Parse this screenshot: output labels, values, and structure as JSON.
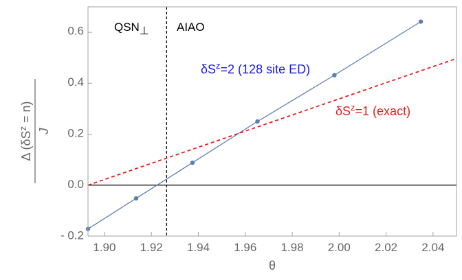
{
  "chart_data": {
    "type": "line",
    "xlabel": "θ",
    "ylabel": "Δ (δS^z = n) / J",
    "xlim": [
      1.893,
      2.05
    ],
    "ylim": [
      -0.2,
      0.7
    ],
    "x_ticks": [
      "1.90",
      "1.92",
      "1.94",
      "1.96",
      "1.98",
      "2.00",
      "2.02",
      "2.04"
    ],
    "y_ticks": [
      "- 0.2",
      "0.0",
      "0.2",
      "0.4",
      "0.6"
    ],
    "grid": false,
    "series": [
      {
        "name": "δS^z=2 (128 site ED)",
        "color": "#5b7fb5",
        "style": "solid-with-markers",
        "x": [
          1.893,
          1.9135,
          1.9375,
          1.9652,
          1.998,
          2.0348
        ],
        "y": [
          -0.172,
          -0.052,
          0.088,
          0.25,
          0.432,
          0.642
        ]
      },
      {
        "name": "δS^z=1 (exact)",
        "color": "#e11d1d",
        "style": "dashed",
        "x": [
          1.893,
          2.05
        ],
        "y": [
          0.0,
          0.497
        ]
      }
    ],
    "reference_lines": [
      {
        "orientation": "horizontal",
        "value": 0.0,
        "color": "#000000",
        "style": "solid"
      },
      {
        "orientation": "vertical",
        "value": 1.9265,
        "color": "#000000",
        "style": "dashed"
      }
    ],
    "annotations": {
      "left_region": "QSN",
      "left_region_sub": "⊥",
      "right_region": "AIAO",
      "ed_label": "δS^z=2 (128 site ED)",
      "exact_label": "δS^z=1 (exact)"
    }
  }
}
